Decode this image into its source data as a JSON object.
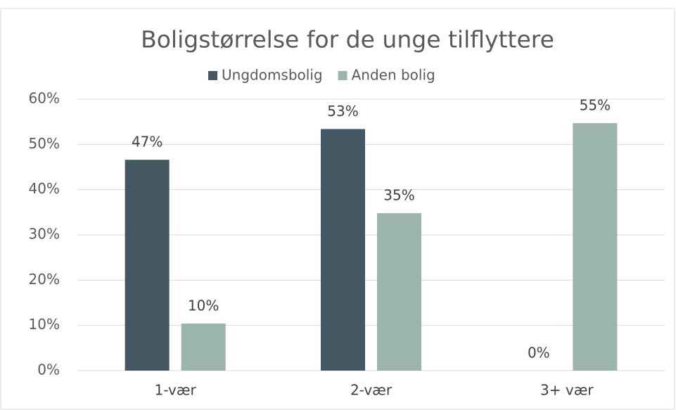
{
  "chart_data": {
    "type": "bar",
    "title": "Boligstørrelse for de unge tilflyttere",
    "categories": [
      "1-vær",
      "2-vær",
      "3+ vær"
    ],
    "series": [
      {
        "name": "Ungdomsbolig",
        "color": "#445864",
        "values": [
          46.6,
          53.4,
          0
        ],
        "value_labels": [
          "47%",
          "53%",
          "0%"
        ]
      },
      {
        "name": "Anden bolig",
        "color": "#9bb5ab",
        "values": [
          10.4,
          34.8,
          54.7
        ],
        "value_labels": [
          "10%",
          "35%",
          "55%"
        ]
      }
    ],
    "ylim": [
      0,
      60
    ],
    "yticks": [
      {
        "value": 0,
        "label": "0%"
      },
      {
        "value": 10,
        "label": "10%"
      },
      {
        "value": 20,
        "label": "20%"
      },
      {
        "value": 30,
        "label": "30%"
      },
      {
        "value": 40,
        "label": "40%"
      },
      {
        "value": 50,
        "label": "50%"
      },
      {
        "value": 60,
        "label": "60%"
      }
    ],
    "grid": true,
    "legend": "top"
  }
}
